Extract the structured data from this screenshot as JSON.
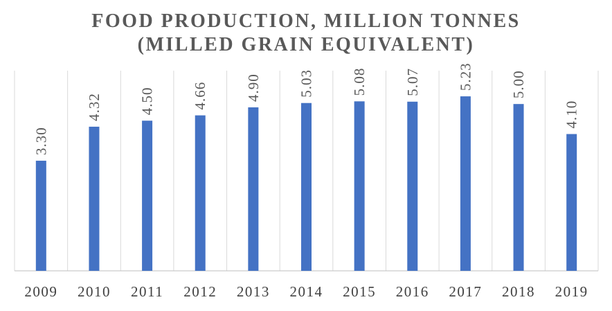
{
  "chart_data": {
    "type": "bar",
    "title_lines": [
      "FOOD PRODUCTION, MILLION TONNES",
      "(MILLED GRAIN EQUIVALENT)"
    ],
    "categories": [
      "2009",
      "2010",
      "2011",
      "2012",
      "2013",
      "2014",
      "2015",
      "2016",
      "2017",
      "2018",
      "2019"
    ],
    "values": [
      3.3,
      4.32,
      4.5,
      4.66,
      4.9,
      5.03,
      5.08,
      5.07,
      5.23,
      5.0,
      4.1
    ],
    "data_labels": [
      "3.30",
      "4.32",
      "4.50",
      "4.66",
      "4.90",
      "5.03",
      "5.08",
      "5.07",
      "5.23",
      "5.00",
      "4.10"
    ],
    "xlabel": "",
    "ylabel": "",
    "ylim": [
      0,
      6
    ],
    "grid": "vertical category separators",
    "legend": "none",
    "bar_color": "#4472C4",
    "grid_color": "#D9D9D9",
    "axis_color": "#BFBFBF"
  }
}
